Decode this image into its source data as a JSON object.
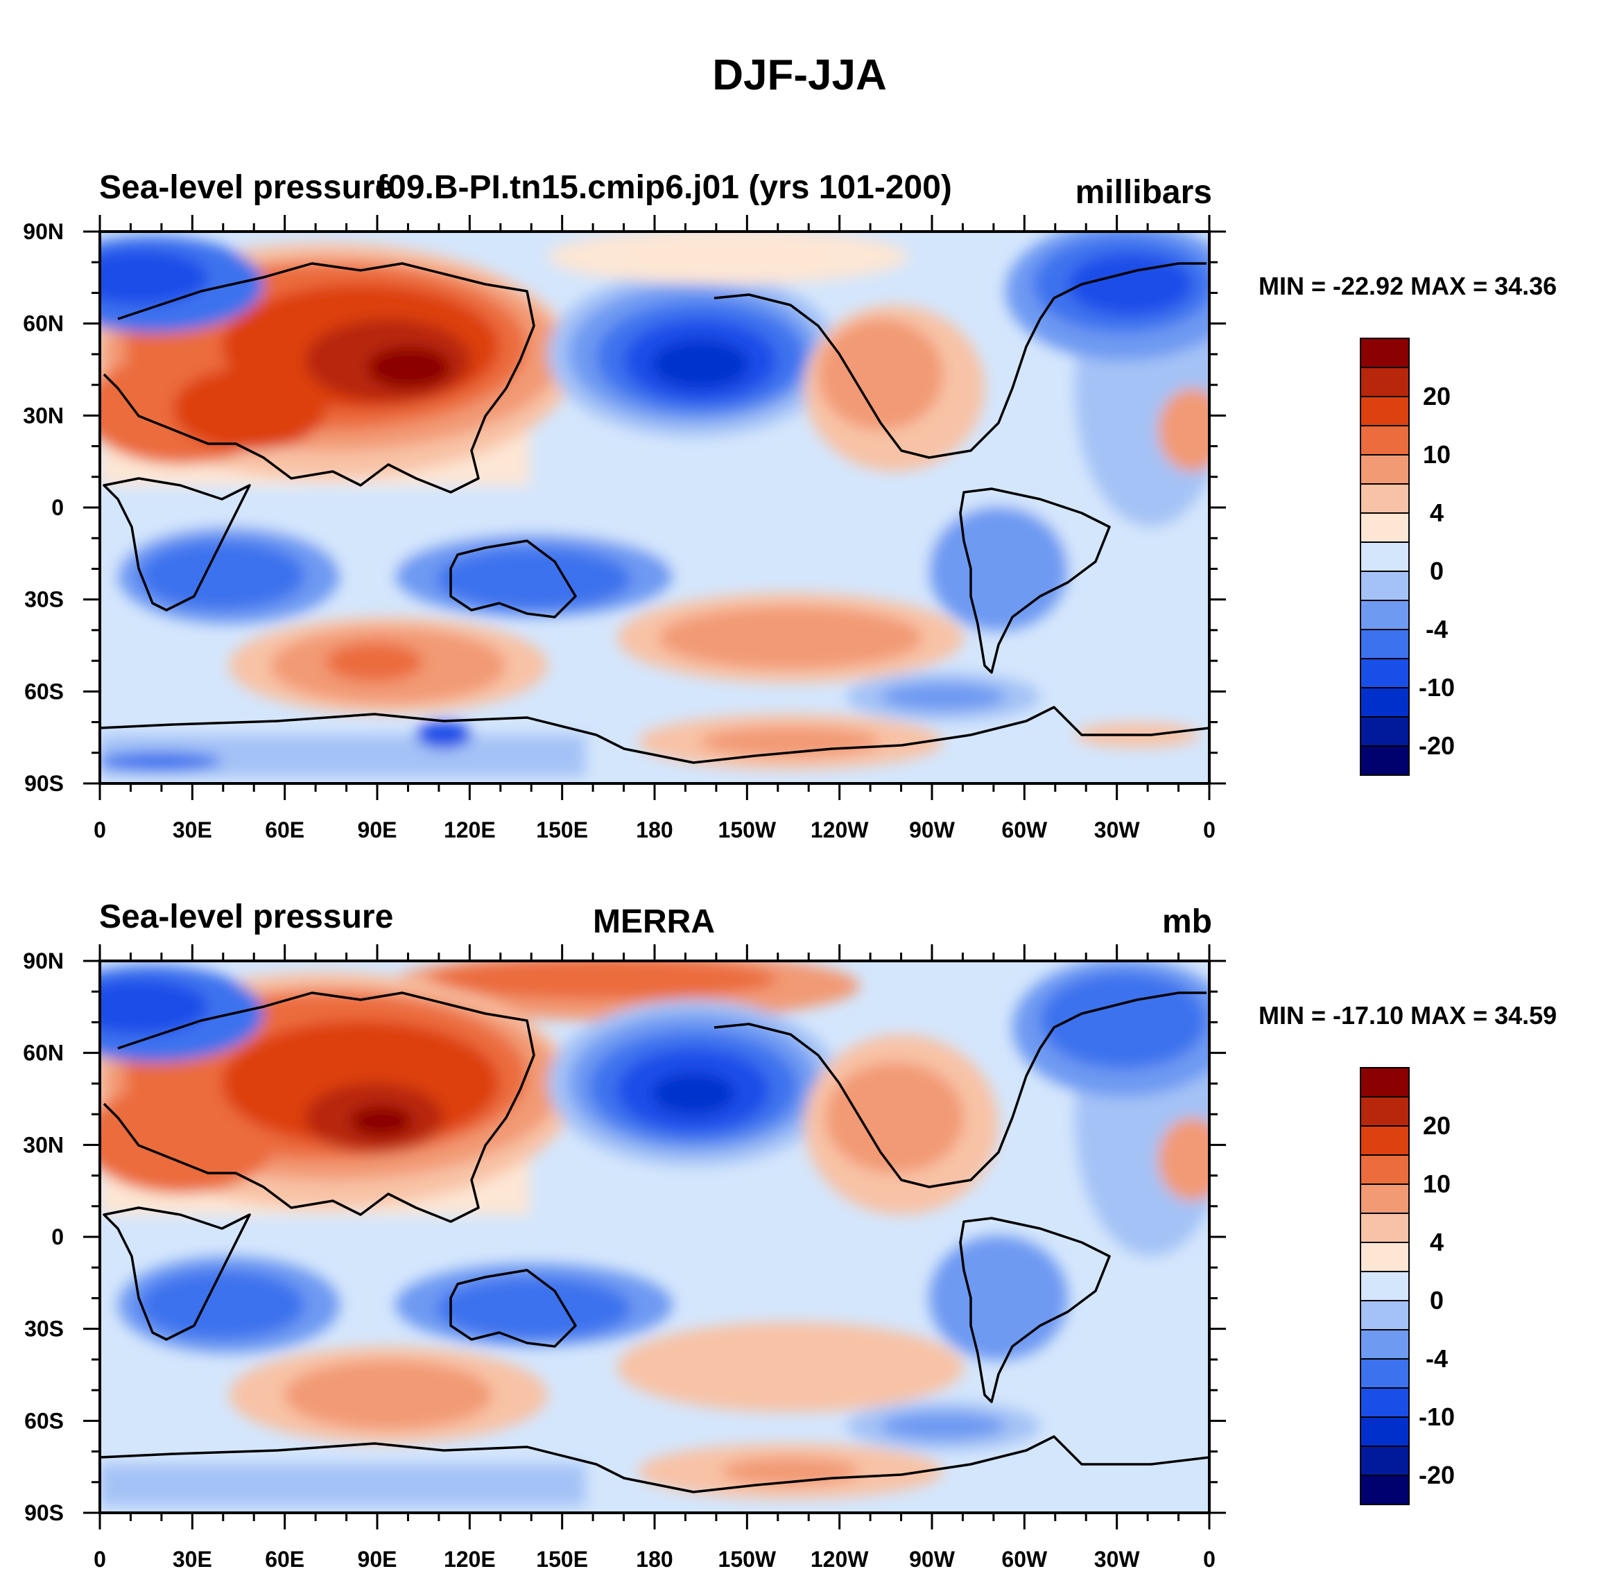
{
  "title": "DJF-JJA",
  "palette": [
    "#00006e",
    "#001a9c",
    "#0030cc",
    "#1a4ee8",
    "#3c72ee",
    "#6e9af2",
    "#a4c2f6",
    "#d4e6fc",
    "#fde6d4",
    "#f8c2a6",
    "#f29a74",
    "#eb6c3c",
    "#dd4110",
    "#b8260c",
    "#8b0000"
  ],
  "panels": [
    {
      "left_title": "Sea-level pressure",
      "center_title": "f09.B-PI.tn15.cmip6.j01 (yrs 101-200)",
      "units": "millibars",
      "min_max": "MIN = -22.92 MAX =  34.36",
      "lat_labels": [
        "90N",
        "60N",
        "30N",
        "0",
        "30S",
        "60S",
        "90S"
      ],
      "lon_labels": [
        "0",
        "30E",
        "60E",
        "90E",
        "120E",
        "150E",
        "180",
        "150W",
        "120W",
        "90W",
        "60W",
        "30W",
        "0"
      ],
      "colorbar_labels": [
        "20",
        "10",
        "4",
        "0",
        "-4",
        "-10",
        "-20"
      ]
    },
    {
      "left_title": "Sea-level pressure",
      "center_title": "MERRA",
      "units": "mb",
      "min_max": "MIN = -17.10 MAX =  34.59",
      "lat_labels": [
        "90N",
        "60N",
        "30N",
        "0",
        "30S",
        "60S",
        "90S"
      ],
      "lon_labels": [
        "0",
        "30E",
        "60E",
        "90E",
        "120E",
        "150E",
        "180",
        "150W",
        "120W",
        "90W",
        "60W",
        "30W",
        "0"
      ],
      "colorbar_labels": [
        "20",
        "10",
        "4",
        "0",
        "-4",
        "-10",
        "-20"
      ]
    }
  ]
}
